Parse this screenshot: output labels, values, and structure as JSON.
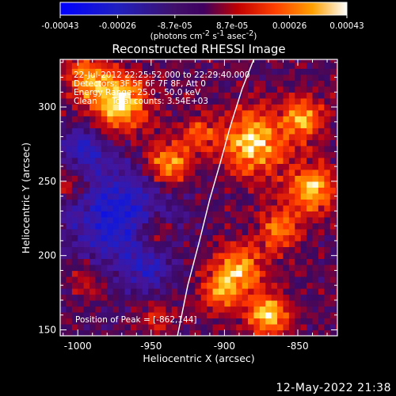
{
  "chart_data": {
    "type": "heatmap",
    "title": "Reconstructed RHESSI Image",
    "xlabel": "Heliocentric X (arcsec)",
    "ylabel": "Heliocentric Y (arcsec)",
    "xlim": [
      -1012,
      -823
    ],
    "ylim": [
      146,
      332
    ],
    "x_ticks": [
      -1000,
      -950,
      -900,
      -850
    ],
    "y_ticks": [
      150,
      200,
      250,
      300
    ],
    "colorbar": {
      "ticks": [
        "-0.00043",
        "-0.00026",
        "-8.7e-05",
        "8.7e-05",
        "0.00026",
        "0.00043"
      ],
      "unit_prefix": "(photons cm",
      "unit_exp1": "-2",
      "unit_mid": " s",
      "unit_exp2": "-1",
      "unit_mid2": " asec",
      "unit_exp3": "-2",
      "unit_suffix": ")",
      "range": [
        -0.00043,
        0.00043
      ]
    },
    "annotations": {
      "time_range": "22-Jul-2012 22:25:52.000 to 22:29:40.000",
      "detectors": "Detectors: 3F 5F 6F 7F 8F, Att 0",
      "energy_range": "Energy Range: 25.0 - 50.0 keV",
      "method": "Clean",
      "total_counts": "Total counts: 3.54E+03",
      "peak_position": "Position of Peak = [-862,144]"
    },
    "intensity_blobs": [
      {
        "x": -972,
        "y": 303,
        "sigma": 14,
        "value": 0.0004
      },
      {
        "x": -994,
        "y": 320,
        "sigma": 10,
        "value": 0.00025
      },
      {
        "x": -938,
        "y": 262,
        "sigma": 10,
        "value": 0.00034
      },
      {
        "x": -918,
        "y": 282,
        "sigma": 8,
        "value": 0.0002
      },
      {
        "x": -880,
        "y": 276,
        "sigma": 16,
        "value": 0.00036
      },
      {
        "x": -846,
        "y": 292,
        "sigma": 10,
        "value": 0.0003
      },
      {
        "x": -840,
        "y": 245,
        "sigma": 11,
        "value": 0.00036
      },
      {
        "x": -862,
        "y": 218,
        "sigma": 10,
        "value": 0.00025
      },
      {
        "x": -890,
        "y": 190,
        "sigma": 12,
        "value": 0.00033
      },
      {
        "x": -870,
        "y": 160,
        "sigma": 10,
        "value": 0.00038
      },
      {
        "x": -905,
        "y": 175,
        "sigma": 9,
        "value": 0.00024
      },
      {
        "x": -948,
        "y": 215,
        "sigma": 9,
        "value": 0.0002
      },
      {
        "x": -1003,
        "y": 250,
        "sigma": 9,
        "value": 0.00018
      },
      {
        "x": -993,
        "y": 185,
        "sigma": 9,
        "value": 0.00014
      },
      {
        "x": -945,
        "y": 158,
        "sigma": 8,
        "value": 0.00016
      }
    ],
    "negative_blobs": [
      {
        "x": -972,
        "y": 225,
        "sigma": 24,
        "value": -0.0003
      },
      {
        "x": -995,
        "y": 270,
        "sigma": 12,
        "value": -0.00022
      },
      {
        "x": -952,
        "y": 190,
        "sigma": 10,
        "value": -0.00016
      }
    ],
    "limb_curve": {
      "x": [
        -932,
        -925,
        -917,
        -910,
        -903,
        -896,
        -888,
        -880
      ],
      "y": [
        146,
        180,
        210,
        238,
        262,
        287,
        312,
        332
      ]
    }
  },
  "timestamp": "12-May-2022 21:38"
}
